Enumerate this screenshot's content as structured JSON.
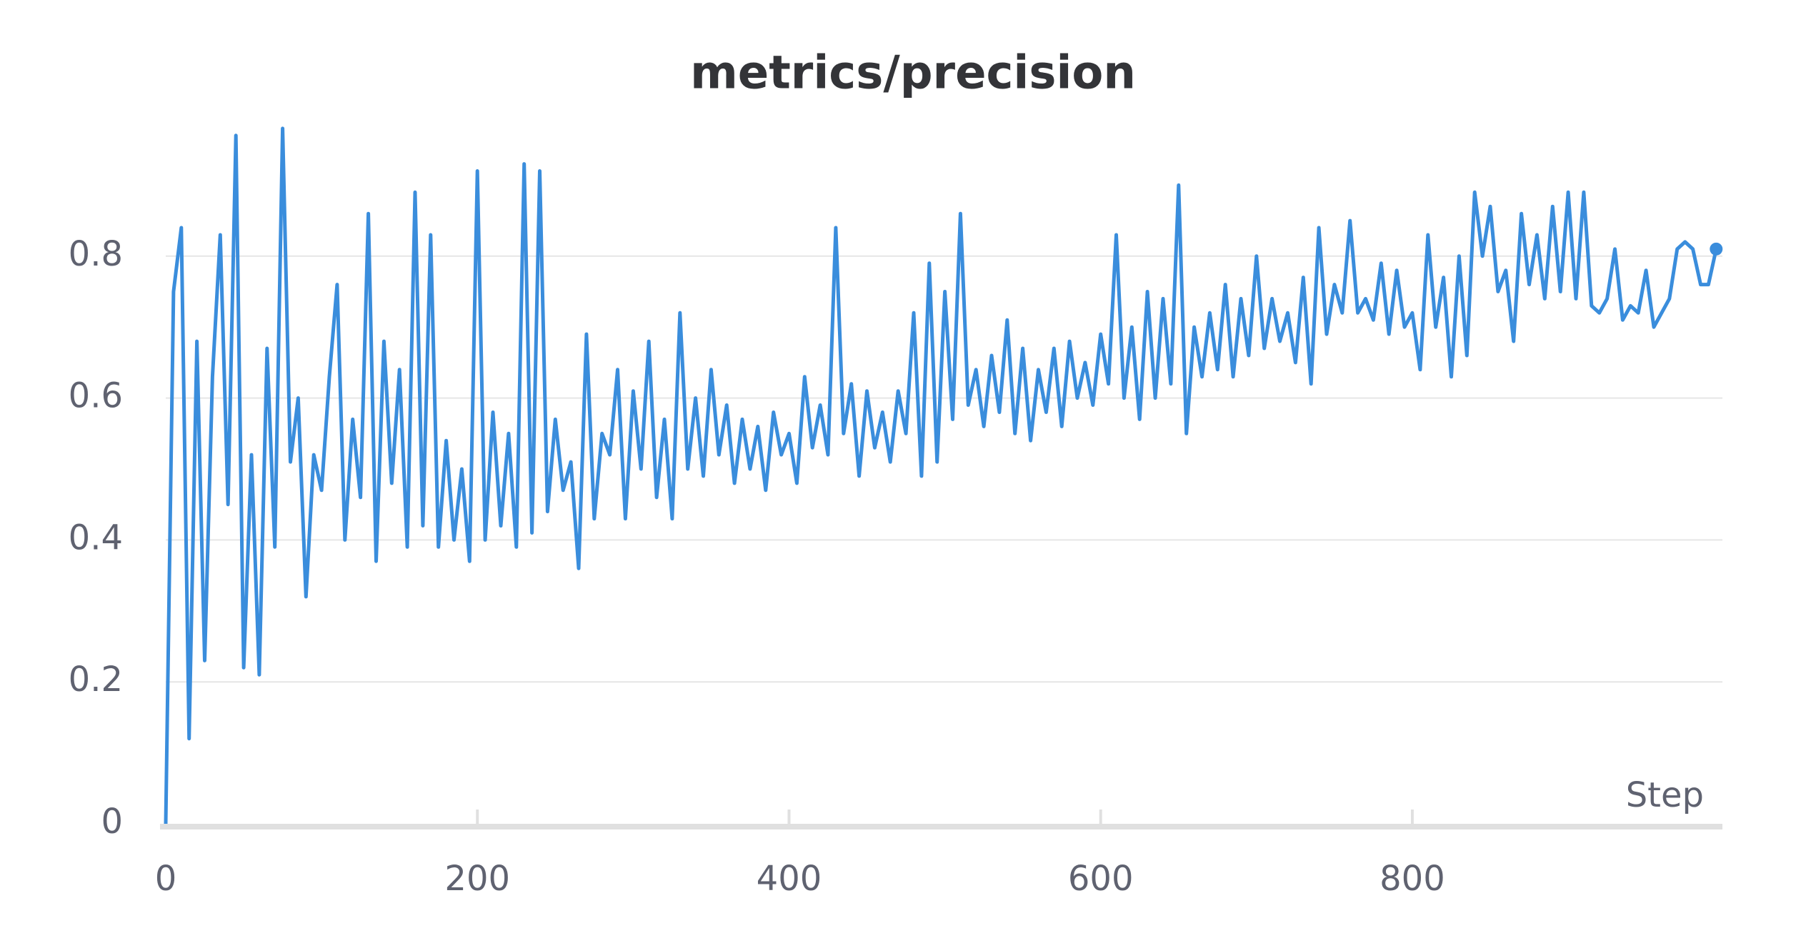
{
  "chart_data": {
    "type": "line",
    "title": "metrics/precision",
    "x_label": "Step",
    "color": "#3a8ddc",
    "grid": true,
    "xlim": [
      0,
      999
    ],
    "xticks": [
      0,
      200,
      400,
      600,
      800
    ],
    "ylim": [
      0,
      1.0
    ],
    "yticks": [
      0,
      0.2,
      0.4,
      0.6,
      0.8
    ],
    "x": [
      0,
      5,
      10,
      15,
      20,
      25,
      30,
      35,
      40,
      45,
      50,
      55,
      60,
      65,
      70,
      75,
      80,
      85,
      90,
      95,
      100,
      105,
      110,
      115,
      120,
      125,
      130,
      135,
      140,
      145,
      150,
      155,
      160,
      165,
      170,
      175,
      180,
      185,
      190,
      195,
      200,
      205,
      210,
      215,
      220,
      225,
      230,
      235,
      240,
      245,
      250,
      255,
      260,
      265,
      270,
      275,
      280,
      285,
      290,
      295,
      300,
      305,
      310,
      315,
      320,
      325,
      330,
      335,
      340,
      345,
      350,
      355,
      360,
      365,
      370,
      375,
      380,
      385,
      390,
      395,
      400,
      405,
      410,
      415,
      420,
      425,
      430,
      435,
      440,
      445,
      450,
      455,
      460,
      465,
      470,
      475,
      480,
      485,
      490,
      495,
      500,
      505,
      510,
      515,
      520,
      525,
      530,
      535,
      540,
      545,
      550,
      555,
      560,
      565,
      570,
      575,
      580,
      585,
      590,
      595,
      600,
      605,
      610,
      615,
      620,
      625,
      630,
      635,
      640,
      645,
      650,
      655,
      660,
      665,
      670,
      675,
      680,
      685,
      690,
      695,
      700,
      705,
      710,
      715,
      720,
      725,
      730,
      735,
      740,
      745,
      750,
      755,
      760,
      765,
      770,
      775,
      780,
      785,
      790,
      795,
      800,
      805,
      810,
      815,
      820,
      825,
      830,
      835,
      840,
      845,
      850,
      855,
      860,
      865,
      870,
      875,
      880,
      885,
      890,
      895,
      900,
      905,
      910,
      915,
      920,
      925,
      930,
      935,
      940,
      945,
      950,
      955,
      960,
      965,
      970,
      975,
      980,
      985,
      990,
      995
    ],
    "values": [
      0.0,
      0.75,
      0.84,
      0.12,
      0.68,
      0.23,
      0.63,
      0.83,
      0.45,
      0.97,
      0.22,
      0.52,
      0.21,
      0.67,
      0.39,
      0.98,
      0.51,
      0.6,
      0.32,
      0.52,
      0.47,
      0.63,
      0.76,
      0.4,
      0.57,
      0.46,
      0.86,
      0.37,
      0.68,
      0.48,
      0.64,
      0.39,
      0.89,
      0.42,
      0.83,
      0.39,
      0.54,
      0.4,
      0.5,
      0.37,
      0.92,
      0.4,
      0.58,
      0.42,
      0.55,
      0.39,
      0.93,
      0.41,
      0.92,
      0.44,
      0.57,
      0.47,
      0.51,
      0.36,
      0.69,
      0.43,
      0.55,
      0.52,
      0.64,
      0.43,
      0.61,
      0.5,
      0.68,
      0.46,
      0.57,
      0.43,
      0.72,
      0.5,
      0.6,
      0.49,
      0.64,
      0.52,
      0.59,
      0.48,
      0.57,
      0.5,
      0.56,
      0.47,
      0.58,
      0.52,
      0.55,
      0.48,
      0.63,
      0.53,
      0.59,
      0.52,
      0.84,
      0.55,
      0.62,
      0.49,
      0.61,
      0.53,
      0.58,
      0.51,
      0.61,
      0.55,
      0.72,
      0.49,
      0.79,
      0.51,
      0.75,
      0.57,
      0.86,
      0.59,
      0.64,
      0.56,
      0.66,
      0.58,
      0.71,
      0.55,
      0.67,
      0.54,
      0.64,
      0.58,
      0.67,
      0.56,
      0.68,
      0.6,
      0.65,
      0.59,
      0.69,
      0.62,
      0.83,
      0.6,
      0.7,
      0.57,
      0.75,
      0.6,
      0.74,
      0.62,
      0.9,
      0.55,
      0.7,
      0.63,
      0.72,
      0.64,
      0.76,
      0.63,
      0.74,
      0.66,
      0.8,
      0.67,
      0.74,
      0.68,
      0.72,
      0.65,
      0.77,
      0.62,
      0.84,
      0.69,
      0.76,
      0.72,
      0.85,
      0.72,
      0.74,
      0.71,
      0.79,
      0.69,
      0.78,
      0.7,
      0.72,
      0.64,
      0.83,
      0.7,
      0.77,
      0.63,
      0.8,
      0.66,
      0.89,
      0.8,
      0.87,
      0.75,
      0.78,
      0.68,
      0.86,
      0.76,
      0.83,
      0.74,
      0.87,
      0.75,
      0.89,
      0.74,
      0.89,
      0.73,
      0.72,
      0.74,
      0.81,
      0.71,
      0.73,
      0.72,
      0.78,
      0.7,
      0.72,
      0.74,
      0.81,
      0.82,
      0.81,
      0.76,
      0.76,
      0.81
    ]
  }
}
